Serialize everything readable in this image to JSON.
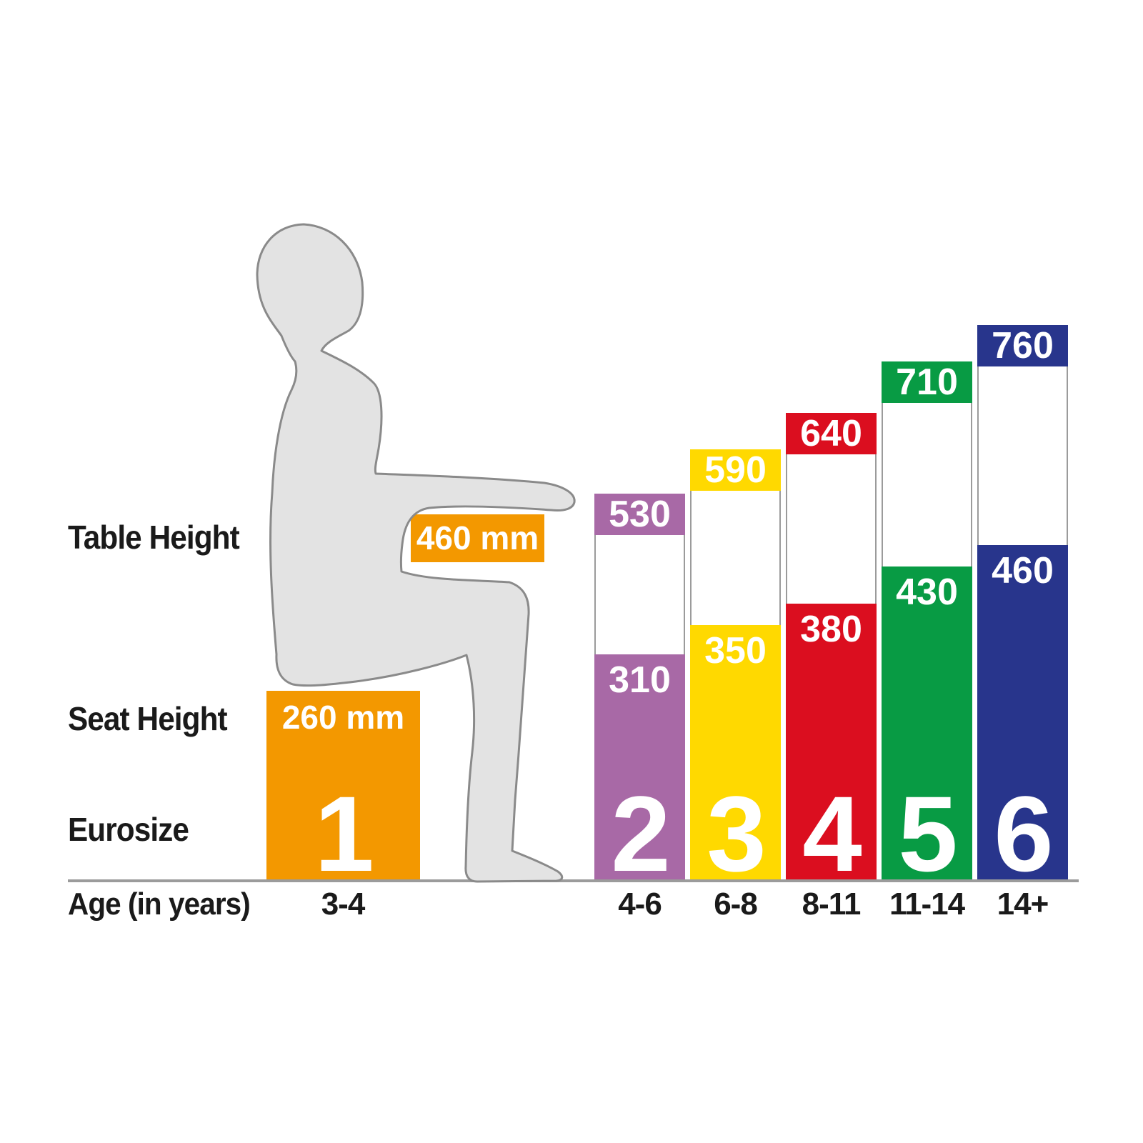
{
  "page": {
    "background": "#FFFFFF"
  },
  "labels": {
    "table_height": "Table Height",
    "seat_height": "Seat Height",
    "eurosize": "Eurosize",
    "age": "Age (in years)"
  },
  "size1": {
    "num": "1",
    "age": "3-4",
    "table_label": "460 mm",
    "seat_label": "260 mm",
    "color": "#F39800"
  },
  "bars": [
    {
      "num": "2",
      "table_mm": 530,
      "seat_mm": 310,
      "age": "4-6",
      "color": "#A869A6"
    },
    {
      "num": "3",
      "table_mm": 590,
      "seat_mm": 350,
      "age": "6-8",
      "color": "#FFD900"
    },
    {
      "num": "4",
      "table_mm": 640,
      "seat_mm": 380,
      "age": "8-11",
      "color": "#DB0E1F"
    },
    {
      "num": "5",
      "table_mm": 710,
      "seat_mm": 430,
      "age": "11-14",
      "color": "#089B44"
    },
    {
      "num": "6",
      "table_mm": 760,
      "seat_mm": 460,
      "age": "14+",
      "color": "#28358C"
    }
  ],
  "silhouette": {
    "fill": "#E3E3E3",
    "outline": "#8A8A8A"
  },
  "baseline_color": "#9B9B9B",
  "chart_data": {
    "type": "bar",
    "categories": [
      "1",
      "2",
      "3",
      "4",
      "5",
      "6"
    ],
    "categories_age": [
      "3-4",
      "4-6",
      "6-8",
      "8-11",
      "11-14",
      "14+"
    ],
    "series": [
      {
        "name": "Table Height",
        "unit": "mm",
        "values": [
          460,
          530,
          590,
          640,
          710,
          760
        ]
      },
      {
        "name": "Seat Height",
        "unit": "mm",
        "values": [
          260,
          310,
          350,
          380,
          430,
          460
        ]
      }
    ],
    "colors": [
      "#F39800",
      "#A869A6",
      "#FFD900",
      "#DB0E1F",
      "#089B44",
      "#28358C"
    ],
    "grid": false,
    "legend_position": "none"
  }
}
